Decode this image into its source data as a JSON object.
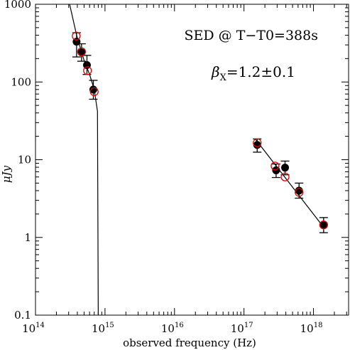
{
  "chart_data": {
    "type": "scatter",
    "xscale": "log",
    "yscale": "log",
    "xlim": [
      100000000000000.0,
      3.2e+18
    ],
    "ylim": [
      0.1,
      1000
    ],
    "xlabel": "observed frequency (Hz)",
    "ylabel": "μJy",
    "x_ticks": [
      {
        "value": 100000000000000.0,
        "label_base": "10",
        "label_exp": "14"
      },
      {
        "value": 1000000000000000.0,
        "label_base": "10",
        "label_exp": "15"
      },
      {
        "value": 1e+16,
        "label_base": "10",
        "label_exp": "16"
      },
      {
        "value": 1e+17,
        "label_base": "10",
        "label_exp": "17"
      },
      {
        "value": 1e+18,
        "label_base": "10",
        "label_exp": "18"
      }
    ],
    "y_ticks": [
      {
        "value": 0.1,
        "label": "0.1"
      },
      {
        "value": 1,
        "label": "1"
      },
      {
        "value": 10,
        "label": "10"
      },
      {
        "value": 100,
        "label": "100"
      },
      {
        "value": 1000,
        "label": "1000"
      }
    ],
    "annotations": {
      "title": "SED @ T−T0=388s",
      "beta_symbol": "β",
      "beta_sub": "X",
      "beta_value": "=1.2±0.1"
    },
    "observed": [
      {
        "x": 390000000000000.0,
        "y": 330,
        "ylo": 210,
        "yhi": 430
      },
      {
        "x": 460000000000000.0,
        "y": 240,
        "ylo": 185,
        "yhi": 310
      },
      {
        "x": 550000000000000.0,
        "y": 165,
        "ylo": 125,
        "yhi": 220
      },
      {
        "x": 680000000000000.0,
        "y": 80,
        "ylo": 60,
        "yhi": 105
      },
      {
        "x": 1.55e+17,
        "y": 15.5,
        "ylo": 12.5,
        "yhi": 18.5
      },
      {
        "x": 2.9e+17,
        "y": 7.3,
        "ylo": 5.9,
        "yhi": 8.8
      },
      {
        "x": 3.9e+17,
        "y": 7.9,
        "ylo": 6.4,
        "yhi": 9.6
      },
      {
        "x": 6.2e+17,
        "y": 4.0,
        "ylo": 3.2,
        "yhi": 5.0
      },
      {
        "x": 1.4e+18,
        "y": 1.45,
        "ylo": 1.15,
        "yhi": 1.8
      }
    ],
    "model_points": [
      {
        "x": 385000000000000.0,
        "y": 390
      },
      {
        "x": 460000000000000.0,
        "y": 245
      },
      {
        "x": 560000000000000.0,
        "y": 140
      },
      {
        "x": 700000000000000.0,
        "y": 75
      },
      {
        "x": 1.55e+17,
        "y": 16.5
      },
      {
        "x": 2.8e+17,
        "y": 8.3
      },
      {
        "x": 3.9e+17,
        "y": 6.0
      },
      {
        "x": 6.2e+17,
        "y": 3.8
      },
      {
        "x": 1.4e+18,
        "y": 1.45
      }
    ],
    "model_curve_optical": [
      {
        "x": 310000000000000.0,
        "y": 1000
      },
      {
        "x": 390000000000000.0,
        "y": 400
      },
      {
        "x": 500000000000000.0,
        "y": 190
      },
      {
        "x": 600000000000000.0,
        "y": 125
      },
      {
        "x": 700000000000000.0,
        "y": 80
      },
      {
        "x": 780000000000000.0,
        "y": 42
      },
      {
        "x": 800000000000000.0,
        "y": 0.1
      }
    ],
    "model_curve_xray": [
      {
        "x": 1.45e+17,
        "y": 18.5
      },
      {
        "x": 1.4e+18,
        "y": 1.35
      }
    ],
    "colors": {
      "observed": "#000000",
      "model": "#e00000",
      "line": "#000000"
    }
  }
}
